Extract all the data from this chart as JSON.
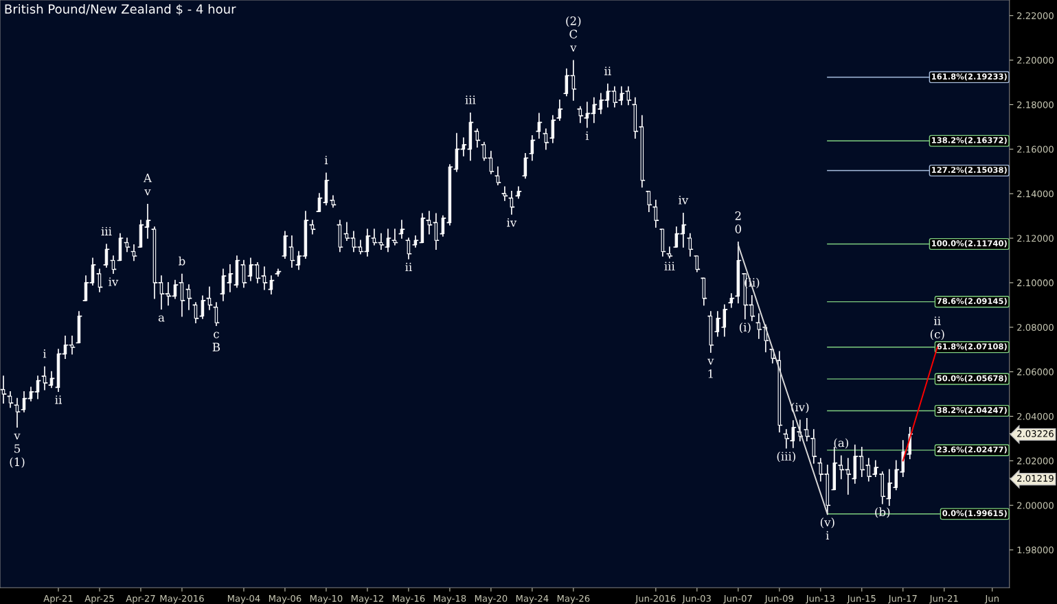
{
  "chart_data": {
    "type": "candlestick",
    "title": "British Pound/New Zealand $ - 4 hour",
    "categories": [
      null,
      null,
      null,
      null,
      null,
      null,
      null,
      null,
      "Apr-21",
      null,
      null,
      null,
      null,
      null,
      "Apr-25",
      null,
      null,
      null,
      null,
      null,
      "Apr-27",
      null,
      null,
      null,
      null,
      null,
      "May-2016",
      null,
      null,
      null,
      null,
      null,
      null,
      null,
      null,
      "May-04",
      null,
      null,
      null,
      null,
      null,
      "May-06",
      null,
      null,
      null,
      null,
      null,
      "May-10",
      null,
      null,
      null,
      null,
      null,
      "May-12",
      null,
      null,
      null,
      null,
      null,
      "May-16",
      null,
      null,
      null,
      null,
      null,
      "May-18",
      null,
      null,
      null,
      null,
      null,
      "May-20",
      null,
      null,
      null,
      null,
      null,
      "May-24",
      null,
      null,
      null,
      null,
      null,
      "May-26",
      null,
      null,
      null,
      null,
      null,
      null,
      null,
      null,
      null,
      null,
      null,
      "Jun-2016",
      null,
      null,
      null,
      null,
      null,
      "Jun-03",
      null,
      null,
      null,
      null,
      null,
      "Jun-07",
      null,
      null,
      null,
      null,
      null,
      "Jun-09",
      null,
      null,
      null,
      null,
      null,
      "Jun-13",
      null,
      null,
      null,
      null,
      null,
      "Jun-15",
      null,
      null,
      null,
      null,
      null,
      "Jun-17",
      null,
      null,
      null,
      null,
      null,
      "Jun-21",
      null,
      null,
      null,
      null,
      null,
      null,
      "Jun",
      null,
      null
    ],
    "ohlc": [
      [
        2.052,
        2.058,
        2.046,
        2.05
      ],
      [
        2.049,
        2.051,
        2.044,
        2.046
      ],
      [
        2.045,
        2.048,
        2.0352,
        2.042
      ],
      [
        2.043,
        2.051,
        2.042,
        2.048
      ],
      [
        2.048,
        2.053,
        2.047,
        2.051
      ],
      [
        2.051,
        2.058,
        2.048,
        2.056
      ],
      [
        2.058,
        2.0622,
        2.052,
        2.055
      ],
      [
        2.054,
        2.06,
        2.053,
        2.057
      ],
      [
        2.053,
        2.07,
        2.0512,
        2.068
      ],
      [
        2.068,
        2.076,
        2.066,
        2.072
      ],
      [
        2.072,
        2.076,
        2.068,
        2.071
      ],
      [
        2.073,
        2.087,
        2.073,
        2.085
      ],
      [
        2.092,
        2.103,
        2.092,
        2.1
      ],
      [
        2.1,
        2.111,
        2.099,
        2.108
      ],
      [
        2.104,
        2.106,
        2.096,
        2.098
      ],
      [
        2.108,
        2.1172,
        2.107,
        2.115
      ],
      [
        2.11,
        2.112,
        2.1042,
        2.106
      ],
      [
        2.11,
        2.122,
        2.11,
        2.12
      ],
      [
        2.118,
        2.12,
        2.114,
        2.116
      ],
      [
        2.114,
        2.117,
        2.11,
        2.112
      ],
      [
        2.116,
        2.128,
        2.116,
        2.126
      ],
      [
        2.125,
        2.1352,
        2.12,
        2.128
      ],
      [
        2.124,
        2.125,
        2.093,
        2.1
      ],
      [
        2.1,
        2.103,
        2.0882,
        2.095
      ],
      [
        2.095,
        2.1,
        2.09,
        2.094
      ],
      [
        2.094,
        2.101,
        2.093,
        2.099
      ],
      [
        2.1,
        2.1038,
        2.085,
        2.092
      ],
      [
        2.097,
        2.099,
        2.088,
        2.093
      ],
      [
        2.09,
        2.091,
        2.082,
        2.084
      ],
      [
        2.085,
        2.094,
        2.084,
        2.092
      ],
      [
        2.093,
        2.098,
        2.088,
        2.09
      ],
      [
        2.089,
        2.091,
        2.0808,
        2.082
      ],
      [
        2.095,
        2.106,
        2.092,
        2.103
      ],
      [
        2.1,
        2.108,
        2.096,
        2.104
      ],
      [
        2.099,
        2.112,
        2.098,
        2.11
      ],
      [
        2.108,
        2.11,
        2.098,
        2.1
      ],
      [
        2.103,
        2.111,
        2.101,
        2.108
      ],
      [
        2.108,
        2.109,
        2.1,
        2.102
      ],
      [
        2.103,
        2.107,
        2.097,
        2.1
      ],
      [
        2.097,
        2.103,
        2.095,
        2.101
      ],
      [
        2.104,
        2.106,
        2.103,
        2.105
      ],
      [
        2.112,
        2.123,
        2.111,
        2.121
      ],
      [
        2.116,
        2.121,
        2.107,
        2.11
      ],
      [
        2.108,
        2.114,
        2.106,
        2.112
      ],
      [
        2.112,
        2.132,
        2.111,
        2.128
      ],
      [
        2.126,
        2.128,
        2.122,
        2.124
      ],
      [
        2.132,
        2.14,
        2.132,
        2.138
      ],
      [
        2.136,
        2.1492,
        2.135,
        2.146
      ],
      [
        2.137,
        2.139,
        2.134,
        2.135
      ],
      [
        2.126,
        2.128,
        2.114,
        2.116
      ],
      [
        2.122,
        2.127,
        2.119,
        2.12
      ],
      [
        2.12,
        2.123,
        2.114,
        2.116
      ],
      [
        2.116,
        2.119,
        2.113,
        2.114
      ],
      [
        2.114,
        2.124,
        2.112,
        2.121
      ],
      [
        2.12,
        2.124,
        2.117,
        2.118
      ],
      [
        2.118,
        2.122,
        2.115,
        2.117
      ],
      [
        2.116,
        2.124,
        2.114,
        2.12
      ],
      [
        2.119,
        2.124,
        2.117,
        2.118
      ],
      [
        2.122,
        2.128,
        2.12,
        2.124
      ],
      [
        2.119,
        2.12,
        2.1108,
        2.113
      ],
      [
        2.117,
        2.121,
        2.116,
        2.119
      ],
      [
        2.118,
        2.131,
        2.118,
        2.129
      ],
      [
        2.128,
        2.132,
        2.122,
        2.126
      ],
      [
        2.127,
        2.131,
        2.115,
        2.119
      ],
      [
        2.122,
        2.13,
        2.121,
        2.129
      ],
      [
        2.127,
        2.153,
        2.126,
        2.152
      ],
      [
        2.151,
        2.167,
        2.15,
        2.16
      ],
      [
        2.16,
        2.165,
        2.157,
        2.162
      ],
      [
        2.16,
        2.1762,
        2.155,
        2.172
      ],
      [
        2.168,
        2.169,
        2.161,
        2.164
      ],
      [
        2.162,
        2.163,
        2.155,
        2.156
      ],
      [
        2.156,
        2.159,
        2.149,
        2.15
      ],
      [
        2.148,
        2.152,
        2.144,
        2.145
      ],
      [
        2.14,
        2.143,
        2.137,
        2.139
      ],
      [
        2.138,
        2.141,
        2.1308,
        2.134
      ],
      [
        2.139,
        2.143,
        2.138,
        2.141
      ],
      [
        2.148,
        2.158,
        2.147,
        2.156
      ],
      [
        2.158,
        2.166,
        2.155,
        2.164
      ],
      [
        2.168,
        2.176,
        2.165,
        2.172
      ],
      [
        2.167,
        2.169,
        2.16,
        2.163
      ],
      [
        2.165,
        2.175,
        2.163,
        2.173
      ],
      [
        2.174,
        2.182,
        2.173,
        2.178
      ],
      [
        2.185,
        2.196,
        2.184,
        2.193
      ],
      [
        2.193,
        2.1998,
        2.182,
        2.187
      ],
      [
        2.178,
        2.179,
        2.172,
        2.175
      ],
      [
        2.174,
        2.181,
        2.1698,
        2.176
      ],
      [
        2.176,
        2.183,
        2.172,
        2.18
      ],
      [
        2.178,
        2.185,
        2.176,
        2.182
      ],
      [
        2.182,
        2.1892,
        2.179,
        2.186
      ],
      [
        2.186,
        2.188,
        2.179,
        2.181
      ],
      [
        2.182,
        2.188,
        2.18,
        2.185
      ],
      [
        2.186,
        2.188,
        2.18,
        2.182
      ],
      [
        2.18,
        2.183,
        2.165,
        2.168
      ],
      [
        2.17,
        2.175,
        2.143,
        2.146
      ],
      [
        2.141,
        2.141,
        2.132,
        2.135
      ],
      [
        2.134,
        2.137,
        2.125,
        2.128
      ],
      [
        2.124,
        2.124,
        2.112,
        2.114
      ],
      [
        2.113,
        2.116,
        2.1112,
        2.112
      ],
      [
        2.116,
        2.125,
        2.116,
        2.122
      ],
      [
        2.122,
        2.1312,
        2.116,
        2.126
      ],
      [
        2.12,
        2.122,
        2.112,
        2.115
      ],
      [
        2.112,
        2.112,
        2.105,
        2.106
      ],
      [
        2.102,
        2.102,
        2.09,
        2.093
      ],
      [
        2.085,
        2.087,
        2.0688,
        2.072
      ],
      [
        2.078,
        2.087,
        2.076,
        2.084
      ],
      [
        2.08,
        2.09,
        2.076,
        2.088
      ],
      [
        2.091,
        2.095,
        2.089,
        2.093
      ],
      [
        2.094,
        2.1182,
        2.091,
        2.11
      ],
      [
        2.104,
        2.104,
        2.0838,
        2.09
      ],
      [
        2.09,
        2.0942,
        2.083,
        2.085
      ],
      [
        2.082,
        2.086,
        2.075,
        2.079
      ],
      [
        2.08,
        2.081,
        2.069,
        2.074
      ],
      [
        2.07,
        2.07,
        2.064,
        2.066
      ],
      [
        2.065,
        2.069,
        2.033,
        2.036
      ],
      [
        2.032,
        2.034,
        2.0258,
        2.03
      ],
      [
        2.029,
        2.038,
        2.026,
        2.035
      ],
      [
        2.033,
        2.0382,
        2.029,
        2.031
      ],
      [
        2.034,
        2.039,
        2.029,
        2.031
      ],
      [
        2.03,
        2.034,
        2.019,
        2.022
      ],
      [
        2.019,
        2.021,
        2.011,
        2.014
      ],
      [
        2.014,
        2.018,
        1.9962,
        2.0
      ],
      [
        2.007,
        2.026,
        2.007,
        2.019
      ],
      [
        2.018,
        2.0222,
        2.012,
        2.016
      ],
      [
        2.016,
        2.021,
        2.005,
        2.014
      ],
      [
        2.012,
        2.027,
        2.01,
        2.022
      ],
      [
        2.022,
        2.026,
        2.013,
        2.016
      ],
      [
        2.018,
        2.021,
        2.011,
        2.013
      ],
      [
        2.014,
        2.02,
        2.013,
        2.017
      ],
      [
        2.014,
        2.015,
        2.0008,
        2.004
      ],
      [
        2.003,
        2.016,
        2.0,
        2.01
      ],
      [
        2.008,
        2.02,
        2.007,
        2.016
      ],
      [
        2.015,
        2.029,
        2.013,
        2.024
      ],
      [
        2.023,
        2.035,
        2.021,
        2.032
      ],
      null,
      null,
      null,
      null,
      null,
      null,
      null,
      null,
      null,
      null,
      null,
      null,
      null,
      null
    ],
    "series": [
      {
        "type": "line",
        "color": "#d8d8d8",
        "values": [
          null,
          null,
          null,
          null,
          null,
          null,
          null,
          null,
          null,
          null,
          null,
          null,
          null,
          null,
          null,
          null,
          null,
          null,
          null,
          null,
          null,
          null,
          null,
          null,
          null,
          null,
          null,
          null,
          null,
          null,
          null,
          null,
          null,
          null,
          null,
          null,
          null,
          null,
          null,
          null,
          null,
          null,
          null,
          null,
          null,
          null,
          null,
          null,
          null,
          null,
          null,
          null,
          null,
          null,
          null,
          null,
          null,
          null,
          null,
          null,
          null,
          null,
          null,
          null,
          null,
          null,
          null,
          null,
          null,
          null,
          null,
          null,
          null,
          null,
          null,
          null,
          null,
          null,
          null,
          null,
          null,
          null,
          null,
          null,
          null,
          null,
          null,
          null,
          null,
          null,
          null,
          null,
          null,
          null,
          null,
          null,
          null,
          null,
          null,
          null,
          null,
          null,
          null,
          null,
          null,
          null,
          null,
          2.117,
          null,
          null,
          null,
          null,
          null,
          null,
          null,
          null,
          null,
          null,
          null,
          null,
          1.996,
          null,
          null,
          null,
          null,
          null,
          null,
          null,
          null,
          null,
          null,
          null,
          null,
          null,
          null,
          null,
          null,
          null,
          null,
          null,
          null,
          null,
          null,
          null,
          null,
          null,
          null
        ]
      },
      {
        "type": "line",
        "color": "#ff0000",
        "values": [
          null,
          null,
          null,
          null,
          null,
          null,
          null,
          null,
          null,
          null,
          null,
          null,
          null,
          null,
          null,
          null,
          null,
          null,
          null,
          null,
          null,
          null,
          null,
          null,
          null,
          null,
          null,
          null,
          null,
          null,
          null,
          null,
          null,
          null,
          null,
          null,
          null,
          null,
          null,
          null,
          null,
          null,
          null,
          null,
          null,
          null,
          null,
          null,
          null,
          null,
          null,
          null,
          null,
          null,
          null,
          null,
          null,
          null,
          null,
          null,
          null,
          null,
          null,
          null,
          null,
          null,
          null,
          null,
          null,
          null,
          null,
          null,
          null,
          null,
          null,
          null,
          null,
          null,
          null,
          null,
          null,
          null,
          null,
          null,
          null,
          null,
          null,
          null,
          null,
          null,
          null,
          null,
          null,
          null,
          null,
          null,
          null,
          null,
          null,
          null,
          null,
          null,
          null,
          null,
          null,
          null,
          null,
          null,
          null,
          null,
          null,
          null,
          null,
          null,
          null,
          null,
          null,
          null,
          null,
          null,
          null,
          null,
          null,
          null,
          null,
          null,
          null,
          null,
          null,
          null,
          null,
          2.02,
          null,
          null,
          null,
          null,
          2.071,
          null,
          null,
          null,
          null,
          null,
          null,
          null,
          null,
          null,
          null
        ]
      }
    ],
    "color": "#ffffff",
    "ylim": [
      1.963,
      2.227
    ],
    "yticks": [
      {
        "value": 1.98,
        "label": "1.98000"
      },
      {
        "value": 2.0,
        "label": "2.00000"
      },
      {
        "value": 2.01219,
        "label": "2.01219"
      },
      {
        "value": 2.02,
        "label": "2.02000"
      },
      {
        "value": 2.03226,
        "label": "2.03226"
      },
      {
        "value": 2.04,
        "label": "2.04000"
      },
      {
        "value": 2.06,
        "label": "2.06000"
      },
      {
        "value": 2.08,
        "label": "2.08000"
      },
      {
        "value": 2.1,
        "label": "2.10000"
      },
      {
        "value": 2.12,
        "label": "2.12000"
      },
      {
        "value": 2.14,
        "label": "2.14000"
      },
      {
        "value": 2.16,
        "label": "2.16000"
      },
      {
        "value": 2.18,
        "label": "2.18000"
      },
      {
        "value": 2.2,
        "label": "2.20000"
      },
      {
        "value": 2.22,
        "label": "2.22000"
      }
    ],
    "ref_lines": [
      {
        "axis": "y",
        "value": 2.19233,
        "label": "161.8%(2.19233)",
        "color": "#a9bfe0"
      },
      {
        "axis": "y",
        "value": 2.16372,
        "label": "138.2%(2.16372)",
        "color": "#7fcf7f"
      },
      {
        "axis": "y",
        "value": 2.15038,
        "label": "127.2%(2.15038)",
        "color": "#a9bfe0"
      },
      {
        "axis": "y",
        "value": 2.1174,
        "label": "100.0%(2.11740)",
        "color": "#7fcf7f"
      },
      {
        "axis": "y",
        "value": 2.09145,
        "label": "78.6%(2.09145)",
        "color": "#7fcf7f"
      },
      {
        "axis": "y",
        "value": 2.07108,
        "label": "61.8%(2.07108)",
        "color": "#7fcf7f"
      },
      {
        "axis": "y",
        "value": 2.05678,
        "label": "50.0%(2.05678)",
        "color": "#7fcf7f"
      },
      {
        "axis": "y",
        "value": 2.04247,
        "label": "38.2%(2.04247)",
        "color": "#7fcf7f"
      },
      {
        "axis": "y",
        "value": 2.02477,
        "label": "23.6%(2.02477)",
        "color": "#7fcf7f"
      },
      {
        "axis": "y",
        "value": 1.99615,
        "label": "0.0%(1.99615)",
        "color": "#7fcf7f"
      }
    ],
    "annotations": [
      {
        "text": "v\n5\n(1)",
        "y": 2.0352
      },
      {
        "text": "i",
        "y": 2.0622
      },
      {
        "text": "ii",
        "y": 2.0512
      },
      {
        "text": "iii",
        "y": 2.1172
      },
      {
        "text": "iv",
        "y": 2.1042
      },
      {
        "text": "A\nv",
        "y": 2.1352
      },
      {
        "text": "a",
        "y": 2.0882
      },
      {
        "text": "b",
        "y": 2.1038
      },
      {
        "text": "c\nB",
        "y": 2.0808
      },
      {
        "text": "i",
        "y": 2.1492
      },
      {
        "text": "ii",
        "y": 2.1108
      },
      {
        "text": "iii",
        "y": 2.1762
      },
      {
        "text": "iv",
        "y": 2.1308
      },
      {
        "text": "(2)\nC\nv",
        "y": 2.1998
      },
      {
        "text": "i",
        "y": 2.1698
      },
      {
        "text": "ii",
        "y": 2.1892
      },
      {
        "text": "iv",
        "y": 2.1312
      },
      {
        "text": "iii",
        "y": 2.1112
      },
      {
        "text": "v\n1",
        "y": 2.0688
      },
      {
        "text": "2\n0",
        "y": 2.1182
      },
      {
        "text": "(ii)",
        "y": 2.0942
      },
      {
        "text": "(i)",
        "y": 2.0838
      },
      {
        "text": "(iii)",
        "y": 2.0258
      },
      {
        "text": "(iv)",
        "y": 2.0382
      },
      {
        "text": "(v)\ni",
        "y": 1.9962
      },
      {
        "text": "(a)",
        "y": 2.0222
      },
      {
        "text": "(b)",
        "y": 2.0008
      },
      {
        "text": "ii\n(c)",
        "y": 2.071
      }
    ],
    "grid": false
  }
}
